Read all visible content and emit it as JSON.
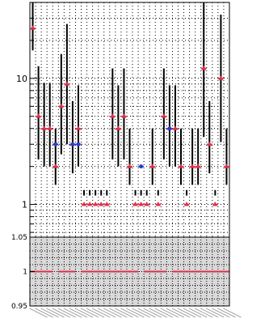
{
  "chart_data": [
    {
      "type": "scatter",
      "panel": "main",
      "yscale": "log",
      "ylim": [
        0.55,
        40
      ],
      "grid": true,
      "y_ticks": [
        {
          "value": 1,
          "label": "1"
        },
        {
          "value": 10,
          "label": "10"
        }
      ],
      "series": [
        {
          "color": "#e0304c",
          "marker": "triangle",
          "values": [
            25,
            5,
            4,
            4,
            2,
            6,
            9,
            3,
            4,
            1,
            1,
            1,
            1,
            1,
            5,
            4,
            5,
            2,
            1,
            1,
            1,
            2,
            1,
            5,
            4,
            4,
            2,
            1,
            2,
            2,
            12,
            3,
            1,
            10,
            2
          ]
        },
        {
          "color": "#2a3bd0",
          "marker": "circle",
          "values": [
            null,
            null,
            null,
            null,
            3,
            null,
            null,
            3,
            3,
            null,
            null,
            null,
            null,
            null,
            null,
            null,
            null,
            null,
            null,
            2,
            null,
            null,
            null,
            null,
            4,
            null,
            null,
            null,
            null,
            null,
            null,
            null,
            null,
            null,
            null
          ]
        }
      ],
      "errors": [
        [
          1.5,
          2.5
        ],
        [
          2.2,
          2.5
        ],
        [
          2.0,
          2.3
        ],
        [
          2.0,
          2.3
        ],
        [
          1.4,
          2.0
        ],
        [
          2.4,
          2.6
        ],
        [
          3.0,
          3.0
        ],
        [
          1.7,
          2.2
        ],
        [
          2.0,
          2.2
        ],
        [
          0.85,
          1.3
        ],
        [
          0.85,
          1.3
        ],
        [
          0.85,
          1.3
        ],
        [
          0.85,
          1.3
        ],
        [
          0.85,
          1.3
        ],
        [
          2.2,
          2.4
        ],
        [
          2.0,
          2.2
        ],
        [
          2.2,
          2.4
        ],
        [
          1.4,
          2.0
        ],
        [
          0.85,
          1.3
        ],
        [
          0.85,
          1.3
        ],
        [
          0.85,
          1.3
        ],
        [
          1.4,
          2.0
        ],
        [
          0.85,
          1.3
        ],
        [
          2.2,
          2.4
        ],
        [
          2.0,
          2.2
        ],
        [
          2.0,
          2.2
        ],
        [
          1.4,
          2.0
        ],
        [
          0.85,
          1.3
        ],
        [
          1.4,
          2.0
        ],
        [
          1.4,
          2.0
        ],
        [
          3.5,
          3.5
        ],
        [
          1.7,
          2.2
        ],
        [
          0.85,
          1.3
        ],
        [
          3.2,
          3.2
        ],
        [
          1.4,
          2.0
        ]
      ]
    },
    {
      "type": "scatter",
      "panel": "ratio",
      "ylim": [
        0.95,
        1.05
      ],
      "grid": true,
      "band": [
        0.95,
        1.05
      ],
      "band_color": "#d9d9d9",
      "y_ticks": [
        {
          "value": 0.95,
          "label": "0.95"
        },
        {
          "value": 1,
          "label": "1"
        },
        {
          "value": 1.05,
          "label": "1.05"
        }
      ],
      "ratio_color": "#e0304c",
      "ratio_values": [
        1,
        1,
        1,
        1,
        null,
        1,
        1,
        1,
        null,
        1,
        1,
        1,
        1,
        1,
        1,
        1,
        1,
        1,
        1,
        null,
        1,
        1,
        1,
        1,
        null,
        1,
        1,
        1,
        1,
        1,
        1,
        1,
        1,
        1,
        1
      ]
    }
  ]
}
